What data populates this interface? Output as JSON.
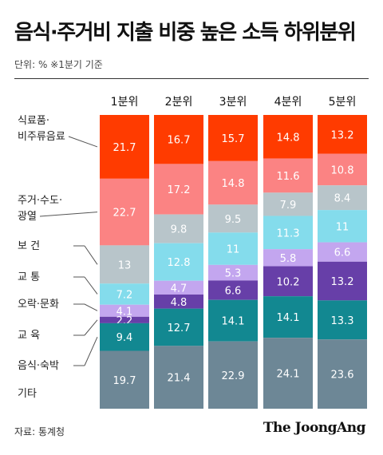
{
  "header": {
    "title": "음식·주거비 지출 비중 높은 소득 하위분위",
    "unit": "단위: %   ※1분기 기준"
  },
  "footer": {
    "source": "자료: 통계청",
    "brand": "The JoongAng"
  },
  "chart_data": {
    "type": "bar",
    "stacked": true,
    "categories": [
      "1분위",
      "2분위",
      "3분위",
      "4분위",
      "5분위"
    ],
    "series": [
      {
        "name": "식료품·비주류음료",
        "color": "#ff3b00",
        "values": [
          21.7,
          16.7,
          15.7,
          14.8,
          13.2
        ]
      },
      {
        "name": "주거·수도·광열",
        "color": "#fb8383",
        "values": [
          22.7,
          17.2,
          14.8,
          11.6,
          10.8
        ]
      },
      {
        "name": "보건",
        "color": "#b8c5ca",
        "values": [
          13,
          9.8,
          9.5,
          7.9,
          8.4
        ]
      },
      {
        "name": "교통",
        "color": "#84dcec",
        "values": [
          7.2,
          12.8,
          11,
          11.3,
          11
        ]
      },
      {
        "name": "오락·문화",
        "color": "#c3a6ef",
        "values": [
          4.1,
          4.7,
          5.3,
          5.8,
          6.6
        ]
      },
      {
        "name": "교육",
        "color": "#673fa8",
        "values": [
          2.2,
          4.8,
          6.6,
          10.2,
          13.2
        ]
      },
      {
        "name": "음식·숙박",
        "color": "#128891",
        "values": [
          9.4,
          12.7,
          14.1,
          14.1,
          13.3
        ]
      },
      {
        "name": "기타",
        "color": "#6d8796",
        "values": [
          19.7,
          21.4,
          22.9,
          24.1,
          23.6
        ]
      }
    ],
    "legend_labels": [
      {
        "lines": [
          "식료품·",
          "비주류음료"
        ]
      },
      {
        "lines": [
          "주거·수도·",
          "광열"
        ]
      },
      {
        "lines": [
          "보     건"
        ]
      },
      {
        "lines": [
          "교     통"
        ]
      },
      {
        "lines": [
          "오락·문화"
        ]
      },
      {
        "lines": [
          "교     육"
        ]
      },
      {
        "lines": [
          "음식·숙박"
        ]
      },
      {
        "lines": [
          "기타"
        ]
      }
    ]
  }
}
